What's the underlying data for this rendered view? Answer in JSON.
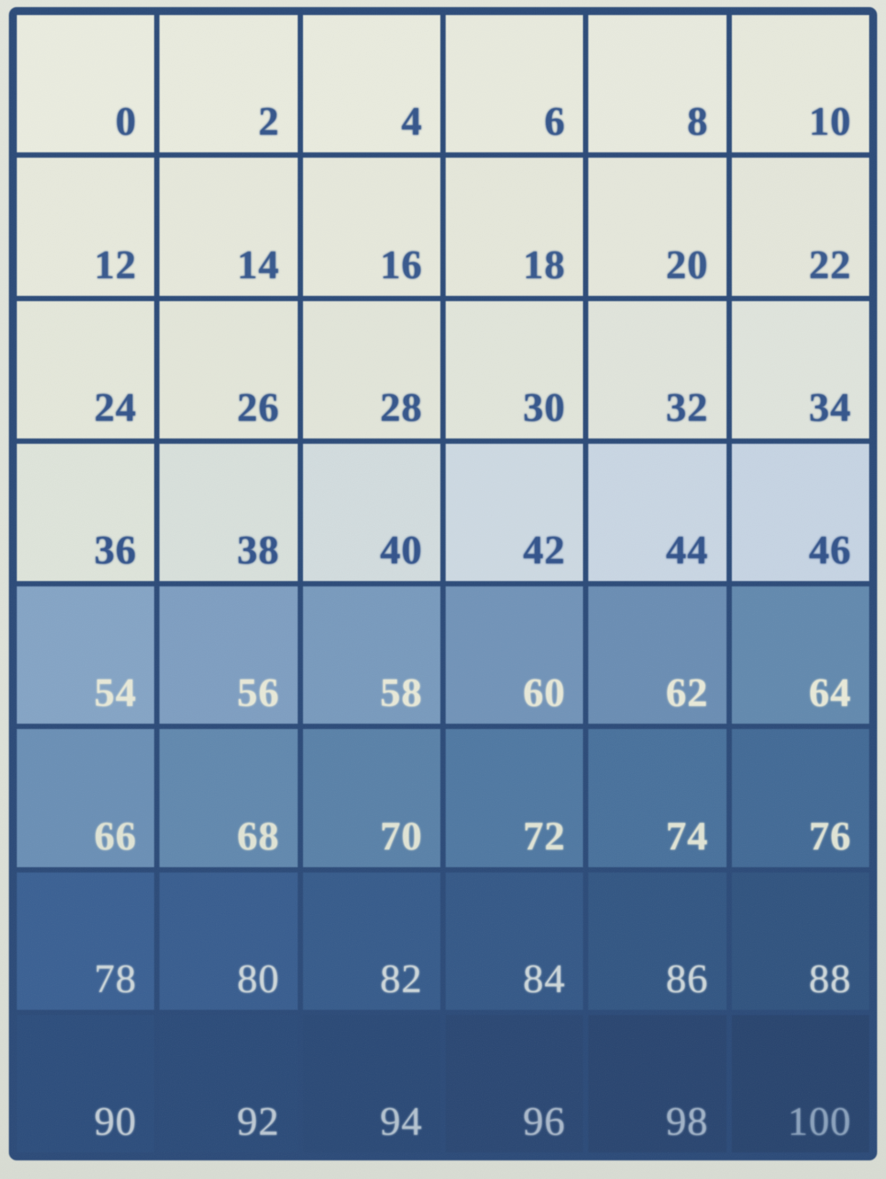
{
  "chart_data": {
    "type": "heatmap",
    "values_percent": [
      [
        0,
        2,
        4,
        6,
        8,
        10
      ],
      [
        12,
        14,
        16,
        18,
        20,
        22
      ],
      [
        24,
        26,
        28,
        30,
        32,
        34
      ],
      [
        36,
        38,
        40,
        42,
        44,
        46
      ],
      [
        54,
        56,
        58,
        60,
        62,
        64
      ],
      [
        66,
        68,
        70,
        72,
        74,
        76
      ],
      [
        78,
        80,
        82,
        84,
        86,
        88
      ],
      [
        90,
        92,
        94,
        96,
        98,
        100
      ]
    ],
    "value_range": [
      0,
      100
    ],
    "grid": {
      "rows": 8,
      "cols": 6
    },
    "tone_scale": {
      "light_end": "#eaecdf",
      "dark_end": "#28446f"
    }
  },
  "grid": {
    "line_color": "#2b4a78",
    "rows": [
      {
        "fg": "#34558b",
        "bold": true,
        "cells": [
          {
            "v": "0",
            "bg": "#eaecdf"
          },
          {
            "v": "2",
            "bg": "#e9ebde"
          },
          {
            "v": "4",
            "bg": "#e9ebde"
          },
          {
            "v": "6",
            "bg": "#e8eadd"
          },
          {
            "v": "8",
            "bg": "#e8eade"
          },
          {
            "v": "10",
            "bg": "#e7e9dc"
          }
        ]
      },
      {
        "fg": "#37588d",
        "bold": true,
        "cells": [
          {
            "v": "12",
            "bg": "#e7e9dc"
          },
          {
            "v": "14",
            "bg": "#e6e8db"
          },
          {
            "v": "16",
            "bg": "#e6e8db"
          },
          {
            "v": "18",
            "bg": "#e5e7da"
          },
          {
            "v": "20",
            "bg": "#e5e7db"
          },
          {
            "v": "22",
            "bg": "#e4e6da"
          }
        ]
      },
      {
        "fg": "#34558b",
        "bold": true,
        "cells": [
          {
            "v": "24",
            "bg": "#e4e7da"
          },
          {
            "v": "26",
            "bg": "#e3e6d9"
          },
          {
            "v": "28",
            "bg": "#e2e5d9"
          },
          {
            "v": "30",
            "bg": "#e1e5da"
          },
          {
            "v": "32",
            "bg": "#e0e4db"
          },
          {
            "v": "34",
            "bg": "#dfe4dc"
          }
        ]
      },
      {
        "fg": "#32538b",
        "bold": true,
        "cells": [
          {
            "v": "36",
            "bg": "#dee4da"
          },
          {
            "v": "38",
            "bg": "#d8e0db"
          },
          {
            "v": "40",
            "bg": "#d2dcde"
          },
          {
            "v": "42",
            "bg": "#cdd9e2"
          },
          {
            "v": "44",
            "bg": "#c9d6e3"
          },
          {
            "v": "46",
            "bg": "#c6d4e3"
          }
        ]
      },
      {
        "fg": "#e8e9d8",
        "bold": true,
        "cells": [
          {
            "v": "54",
            "bg": "#84a4c5"
          },
          {
            "v": "56",
            "bg": "#7e9ec1"
          },
          {
            "v": "58",
            "bg": "#789abd"
          },
          {
            "v": "60",
            "bg": "#7193b8"
          },
          {
            "v": "62",
            "bg": "#6a8db3"
          },
          {
            "v": "64",
            "bg": "#6289ae"
          }
        ]
      },
      {
        "fg": "#e0e4d5",
        "bold": true,
        "cells": [
          {
            "v": "66",
            "bg": "#6a8fb5"
          },
          {
            "v": "68",
            "bg": "#6188ae"
          },
          {
            "v": "70",
            "bg": "#5981a8"
          },
          {
            "v": "72",
            "bg": "#4f78a2"
          },
          {
            "v": "74",
            "bg": "#48719c"
          },
          {
            "v": "76",
            "bg": "#426a96"
          }
        ]
      },
      {
        "fg": "#cdd7da",
        "bold": false,
        "cells": [
          {
            "v": "78",
            "bg": "#3a6093"
          },
          {
            "v": "80",
            "bg": "#385d8f"
          },
          {
            "v": "82",
            "bg": "#365b8b"
          },
          {
            "v": "84",
            "bg": "#345887"
          },
          {
            "v": "86",
            "bg": "#325683"
          },
          {
            "v": "88",
            "bg": "#30537f"
          }
        ]
      },
      {
        "fg": "#bcc8d3",
        "bold": false,
        "cells": [
          {
            "v": "90",
            "bg": "#2c4d7c",
            "fg": "#c2cdd6"
          },
          {
            "v": "92",
            "bg": "#2b4b79",
            "fg": "#bcc8d3"
          },
          {
            "v": "94",
            "bg": "#2a4976",
            "fg": "#b3c2cf"
          },
          {
            "v": "96",
            "bg": "#2a4773",
            "fg": "#aab9cb"
          },
          {
            "v": "98",
            "bg": "#294570",
            "fg": "#a0b2c7"
          },
          {
            "v": "100",
            "bg": "#28446e",
            "fg": "#8aa1bc"
          }
        ]
      }
    ]
  }
}
